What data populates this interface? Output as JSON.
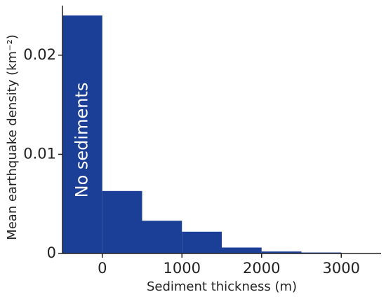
{
  "chart_data": {
    "type": "histogram",
    "xlabel": "Sediment thickness (m)",
    "ylabel": "Mean earthquake density (km⁻²)",
    "annotation": "No sediments",
    "bins": [
      -500,
      0,
      500,
      1000,
      1500,
      2000,
      2500,
      3000
    ],
    "values": [
      0.024,
      0.0063,
      0.0033,
      0.0022,
      0.0006,
      0.0002,
      0.0001
    ],
    "color": "#1b3f96",
    "xlim": [
      -500,
      3500
    ],
    "xticks": [
      0,
      1000,
      2000,
      3000
    ],
    "ylim": [
      0,
      0.025
    ],
    "yticks": [
      0,
      0.01,
      0.02
    ]
  }
}
